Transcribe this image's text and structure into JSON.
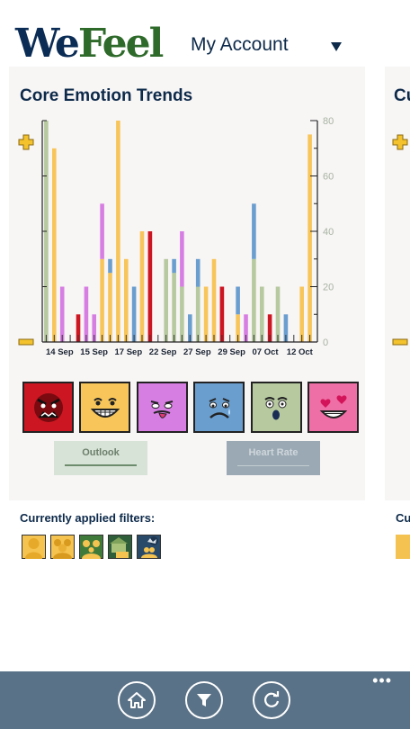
{
  "header": {
    "logo_part1": "We",
    "logo_part2": "Feel",
    "account_label": "My Account",
    "dropdown_icon": "chevron-down-icon"
  },
  "card": {
    "title": "Core Emotion Trends",
    "peek_title": "Cu"
  },
  "colors": {
    "outlook": "#b6c99f",
    "happy": "#f7c55a",
    "silly": "#d77ee3",
    "sad": "#6a9ece",
    "angry": "#cc1722",
    "love": "#ee6fa5"
  },
  "chart_data": {
    "type": "bar",
    "stacked": true,
    "x_tick_labels": [
      "14 Sep",
      "15 Sep",
      "17 Sep",
      "22 Sep",
      "27 Sep",
      "29 Sep",
      "07 Oct",
      "12 Oct"
    ],
    "right_axis_ticks": [
      0,
      20,
      40,
      60,
      80
    ],
    "ylim": [
      0,
      80
    ],
    "grid": false,
    "bars": [
      {
        "outlook": 80
      },
      {
        "happy": 70
      },
      {
        "silly": 20
      },
      {},
      {
        "angry": 10
      },
      {
        "silly": 20
      },
      {
        "silly": 10
      },
      {
        "happy": 30,
        "silly": 20
      },
      {
        "happy": 25,
        "sad": 5
      },
      {
        "happy": 80
      },
      {
        "happy": 30
      },
      {
        "sad": 20
      },
      {
        "happy": 40
      },
      {
        "angry": 40
      },
      {},
      {
        "outlook": 30
      },
      {
        "outlook": 25,
        "sad": 5
      },
      {
        "outlook": 20,
        "silly": 20
      },
      {
        "sad": 10
      },
      {
        "outlook": 20,
        "sad": 10
      },
      {
        "happy": 20
      },
      {
        "happy": 30
      },
      {
        "angry": 20
      },
      {},
      {
        "happy": 10,
        "sad": 10
      },
      {
        "silly": 10
      },
      {
        "outlook": 30,
        "sad": 20
      },
      {
        "outlook": 20
      },
      {
        "angry": 10
      },
      {
        "outlook": 20
      },
      {
        "sad": 10
      },
      {},
      {
        "happy": 20
      },
      {
        "happy": 75
      }
    ]
  },
  "emotion_buttons": [
    {
      "name": "angry-face-button",
      "icon": "angry-face-icon",
      "color": "#cc1722"
    },
    {
      "name": "happy-face-button",
      "icon": "happy-face-icon",
      "color": "#f7c55a"
    },
    {
      "name": "silly-face-button",
      "icon": "silly-face-icon",
      "color": "#d77ee3"
    },
    {
      "name": "sad-face-button",
      "icon": "sad-face-icon",
      "color": "#6a9ece"
    },
    {
      "name": "surprised-face-button",
      "icon": "surprised-face-icon",
      "color": "#b6c99f"
    },
    {
      "name": "love-face-button",
      "icon": "love-face-icon",
      "color": "#ee6fa5"
    }
  ],
  "tabs": {
    "outlook_label": "Outlook",
    "heart_rate_label": "Heart Rate"
  },
  "filters": {
    "label": "Currently applied filters:",
    "peek_label": "Cu",
    "icons": [
      "person-filter-icon",
      "group-filter-icon",
      "family-filter-icon",
      "home-filter-icon",
      "outdoors-filter-icon"
    ]
  },
  "appbar": {
    "buttons": [
      "home-icon",
      "filter-icon",
      "refresh-icon"
    ],
    "more_label": "•••"
  }
}
